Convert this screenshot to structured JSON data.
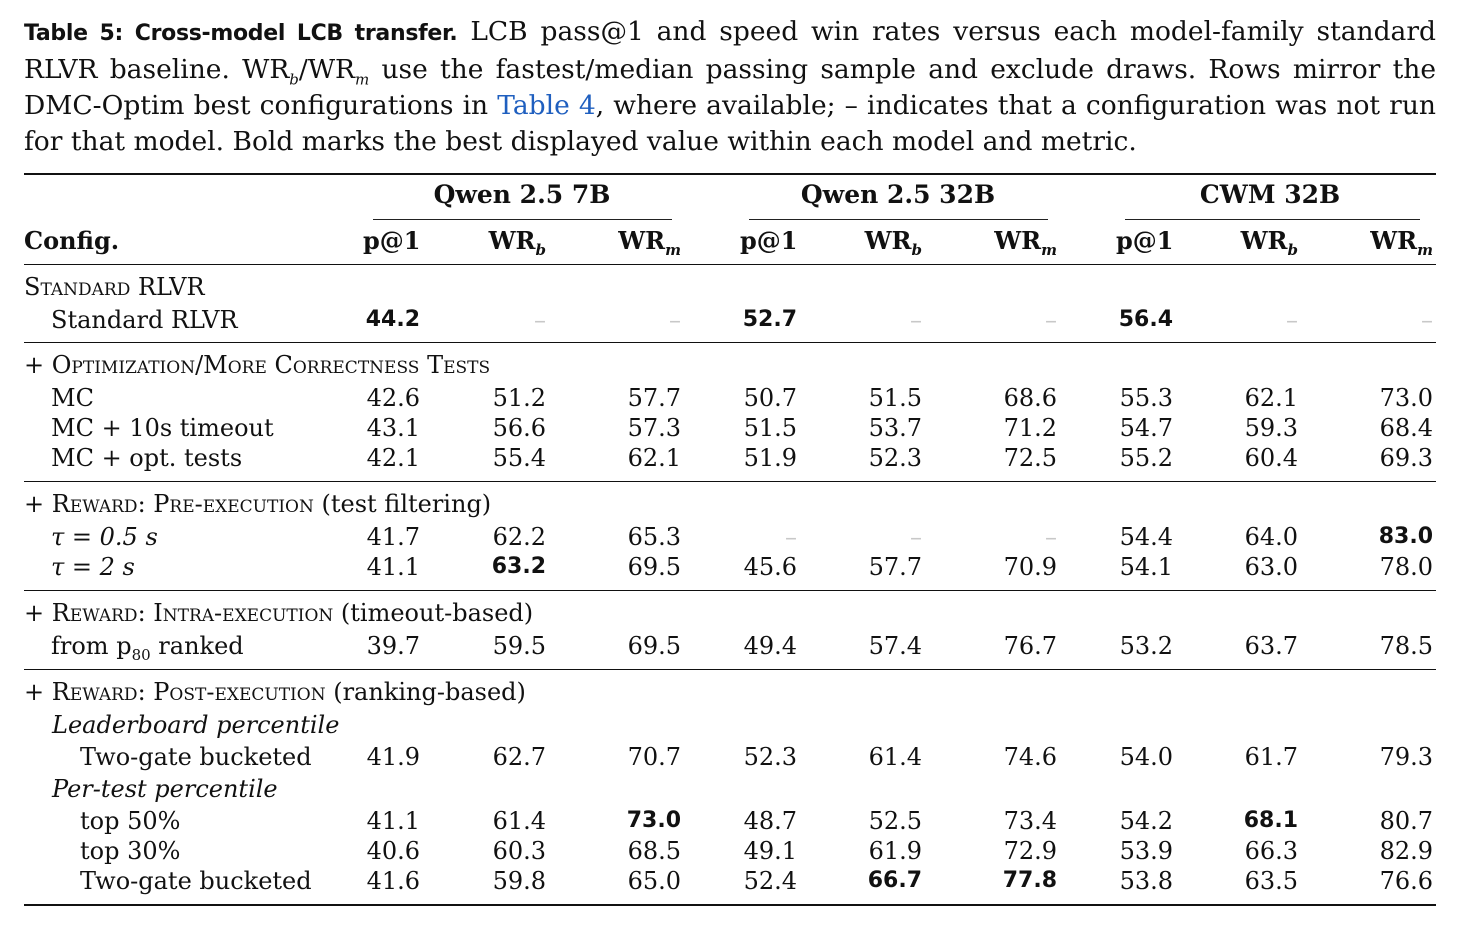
{
  "caption": {
    "label": "Table 5: Cross-model LCB transfer.",
    "text_part1": "LCB pass@1 and speed win rates versus each model-family standard RLVR baseline. WR",
    "sub_b": "b",
    "text_part2": "/WR",
    "sub_m": "m",
    "text_part3": " use the fastest/median passing sample and exclude draws. Rows mirror the DMC-Optim best configurations in ",
    "link_text": "Table 4",
    "text_part4": ", where available; – indicates that a configuration was not run for that model. Bold marks the best displayed value within each model and metric."
  },
  "table": {
    "config_header": "Config.",
    "groups": [
      "Qwen 2.5 7B",
      "Qwen 2.5 32B",
      "CWM 32B"
    ],
    "metrics": [
      {
        "base": "p@1",
        "sub": ""
      },
      {
        "base": "WR",
        "sub": "b"
      },
      {
        "base": "WR",
        "sub": "m"
      }
    ],
    "sections": [
      {
        "title": "Standard RLVR",
        "rows": [
          {
            "label": "Standard RLVR",
            "values": [
              "44.2",
              "–",
              "–",
              "52.7",
              "–",
              "–",
              "56.4",
              "–",
              "–"
            ],
            "bold": [
              true,
              false,
              false,
              true,
              false,
              false,
              true,
              false,
              false
            ]
          }
        ]
      },
      {
        "title": "+ Optimization/More Correctness Tests",
        "rows": [
          {
            "label": "MC",
            "values": [
              "42.6",
              "51.2",
              "57.7",
              "50.7",
              "51.5",
              "68.6",
              "55.3",
              "62.1",
              "73.0"
            ],
            "bold": [
              false,
              false,
              false,
              false,
              false,
              false,
              false,
              false,
              false
            ]
          },
          {
            "label": "MC + 10s timeout",
            "values": [
              "43.1",
              "56.6",
              "57.3",
              "51.5",
              "53.7",
              "71.2",
              "54.7",
              "59.3",
              "68.4"
            ],
            "bold": [
              false,
              false,
              false,
              false,
              false,
              false,
              false,
              false,
              false
            ]
          },
          {
            "label": "MC + opt. tests",
            "values": [
              "42.1",
              "55.4",
              "62.1",
              "51.9",
              "52.3",
              "72.5",
              "55.2",
              "60.4",
              "69.3"
            ],
            "bold": [
              false,
              false,
              false,
              false,
              false,
              false,
              false,
              false,
              false
            ]
          }
        ]
      },
      {
        "title": "+ Reward: Pre-execution",
        "title_suffix": "(test filtering)",
        "rows": [
          {
            "label": "τ = 0.5 s",
            "values": [
              "41.7",
              "62.2",
              "65.3",
              "–",
              "–",
              "–",
              "54.4",
              "64.0",
              "83.0"
            ],
            "bold": [
              false,
              false,
              false,
              false,
              false,
              false,
              false,
              false,
              true
            ]
          },
          {
            "label": "τ = 2 s",
            "values": [
              "41.1",
              "63.2",
              "69.5",
              "45.6",
              "57.7",
              "70.9",
              "54.1",
              "63.0",
              "78.0"
            ],
            "bold": [
              false,
              true,
              false,
              false,
              false,
              false,
              false,
              false,
              false
            ]
          }
        ]
      },
      {
        "title": "+ Reward: Intra-execution",
        "title_suffix": "(timeout-based)",
        "rows": [
          {
            "label": "from p",
            "label_sub": "80",
            "label_rest": " ranked",
            "values": [
              "39.7",
              "59.5",
              "69.5",
              "49.4",
              "57.4",
              "76.7",
              "53.2",
              "63.7",
              "78.5"
            ],
            "bold": [
              false,
              false,
              false,
              false,
              false,
              false,
              false,
              false,
              false
            ]
          }
        ]
      },
      {
        "title": "+ Reward: Post-execution",
        "title_suffix": "(ranking-based)",
        "subsections": [
          {
            "title": "Leaderboard percentile",
            "rows": [
              {
                "label": "Two-gate bucketed",
                "values": [
                  "41.9",
                  "62.7",
                  "70.7",
                  "52.3",
                  "61.4",
                  "74.6",
                  "54.0",
                  "61.7",
                  "79.3"
                ],
                "bold": [
                  false,
                  false,
                  false,
                  false,
                  false,
                  false,
                  false,
                  false,
                  false
                ]
              }
            ]
          },
          {
            "title": "Per-test percentile",
            "rows": [
              {
                "label": "top 50%",
                "values": [
                  "41.1",
                  "61.4",
                  "73.0",
                  "48.7",
                  "52.5",
                  "73.4",
                  "54.2",
                  "68.1",
                  "80.7"
                ],
                "bold": [
                  false,
                  false,
                  true,
                  false,
                  false,
                  false,
                  false,
                  true,
                  false
                ]
              },
              {
                "label": "top 30%",
                "values": [
                  "40.6",
                  "60.3",
                  "68.5",
                  "49.1",
                  "61.9",
                  "72.9",
                  "53.9",
                  "66.3",
                  "82.9"
                ],
                "bold": [
                  false,
                  false,
                  false,
                  false,
                  false,
                  false,
                  false,
                  false,
                  false
                ]
              },
              {
                "label": "Two-gate bucketed",
                "values": [
                  "41.6",
                  "59.8",
                  "65.0",
                  "52.4",
                  "66.7",
                  "77.8",
                  "53.8",
                  "63.5",
                  "76.6"
                ],
                "bold": [
                  false,
                  false,
                  false,
                  false,
                  true,
                  true,
                  false,
                  false,
                  false
                ]
              }
            ]
          }
        ]
      }
    ]
  }
}
